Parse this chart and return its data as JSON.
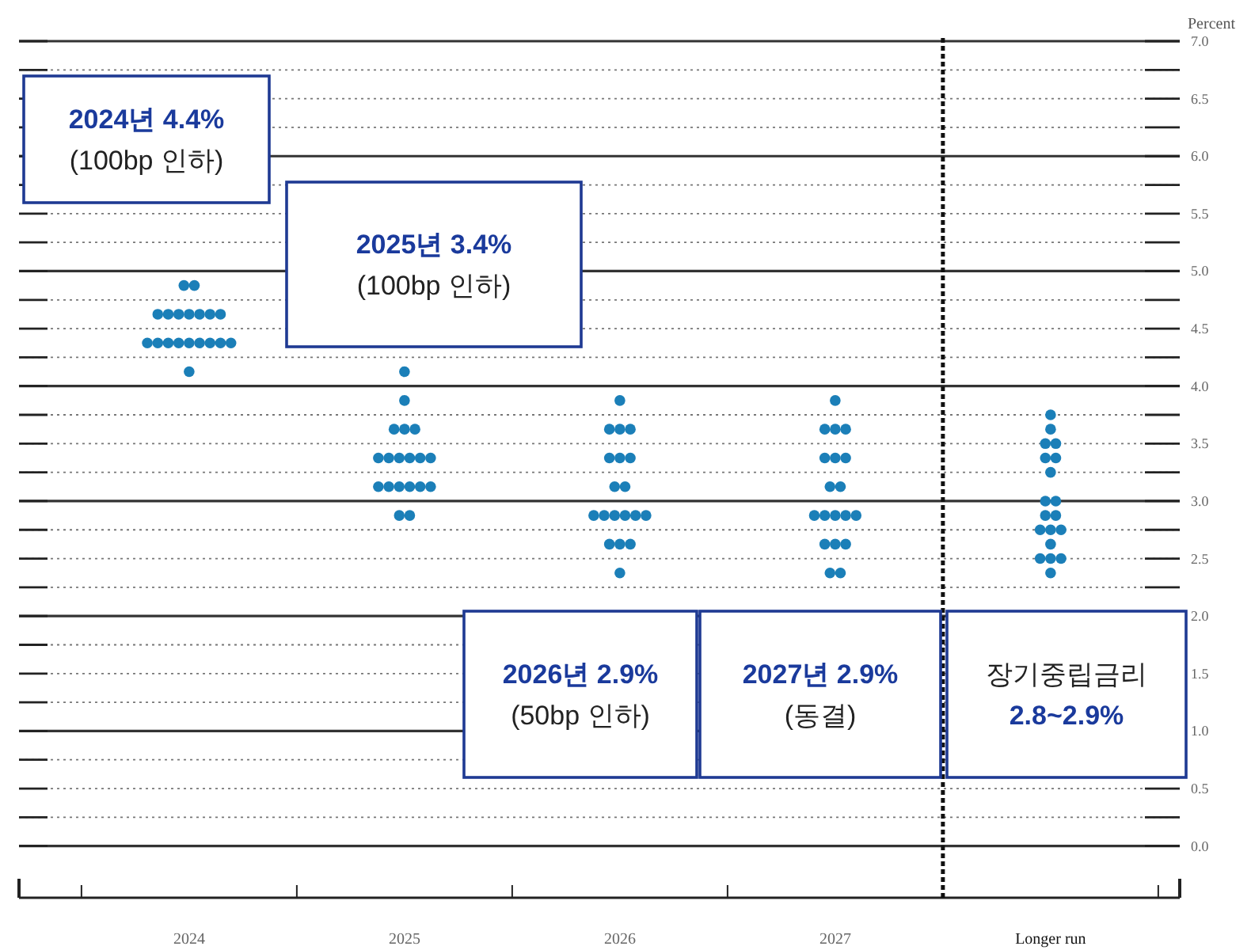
{
  "chart_data": {
    "type": "scatter",
    "ylabel": "Percent",
    "categories": [
      "2024",
      "2025",
      "2026",
      "2027",
      "Longer run"
    ],
    "ylim": [
      -0.45,
      7.0
    ],
    "yticks": [
      {
        "value": 0,
        "label": "0.0"
      },
      {
        "value": 0.25,
        "label": null
      },
      {
        "value": 0.5,
        "label": "0.5"
      },
      {
        "value": 0.75,
        "label": null
      },
      {
        "value": 1,
        "label": "1.0"
      },
      {
        "value": 1.25,
        "label": null
      },
      {
        "value": 1.5,
        "label": "1.5"
      },
      {
        "value": 1.75,
        "label": null
      },
      {
        "value": 2,
        "label": "2.0"
      },
      {
        "value": 2.25,
        "label": null
      },
      {
        "value": 2.5,
        "label": "2.5"
      },
      {
        "value": 2.75,
        "label": null
      },
      {
        "value": 3,
        "label": "3.0"
      },
      {
        "value": 3.25,
        "label": null
      },
      {
        "value": 3.5,
        "label": "3.5"
      },
      {
        "value": 3.75,
        "label": null
      },
      {
        "value": 4,
        "label": "4.0"
      },
      {
        "value": 4.25,
        "label": null
      },
      {
        "value": 4.5,
        "label": "4.5"
      },
      {
        "value": 4.75,
        "label": null
      },
      {
        "value": 5,
        "label": "5.0"
      },
      {
        "value": 5.25,
        "label": null
      },
      {
        "value": 5.5,
        "label": "5.5"
      },
      {
        "value": 5.75,
        "label": null
      },
      {
        "value": 6,
        "label": "6.0"
      },
      {
        "value": 6.25,
        "label": null
      },
      {
        "value": 6.5,
        "label": "6.5"
      },
      {
        "value": 6.75,
        "label": null
      },
      {
        "value": 7,
        "label": "7.0"
      }
    ],
    "grid": "y",
    "marker": "circle",
    "ref_lines": [
      {
        "axis": "x",
        "value": "Longer run",
        "line_style": "dashed",
        "color": "#111111"
      }
    ],
    "series": [
      {
        "color": "#1b7fb8",
        "values": [
          4.875,
          4.125,
          3.875,
          3.875,
          3.75
        ]
      },
      {
        "color": "#1b7fb8",
        "values": [
          4.875,
          3.875,
          3.625,
          3.625,
          3.625
        ]
      },
      {
        "color": "#1b7fb8",
        "values": [
          4.625,
          3.625,
          3.625,
          3.625,
          3.5
        ]
      },
      {
        "color": "#1b7fb8",
        "values": [
          4.625,
          3.625,
          3.625,
          3.625,
          3.5
        ]
      },
      {
        "color": "#1b7fb8",
        "values": [
          4.625,
          3.625,
          3.375,
          3.375,
          3.375
        ]
      },
      {
        "color": "#1b7fb8",
        "values": [
          4.625,
          3.375,
          3.375,
          3.375,
          3.375
        ]
      },
      {
        "color": "#1b7fb8",
        "values": [
          4.625,
          3.375,
          3.375,
          3.375,
          3.25
        ]
      },
      {
        "color": "#1b7fb8",
        "values": [
          4.625,
          3.375,
          3.125,
          3.125,
          3.0
        ]
      },
      {
        "color": "#1b7fb8",
        "values": [
          4.625,
          3.375,
          3.125,
          3.125,
          3.0
        ]
      },
      {
        "color": "#1b7fb8",
        "values": [
          4.375,
          3.375,
          2.875,
          2.875,
          2.875
        ]
      },
      {
        "color": "#1b7fb8",
        "values": [
          4.375,
          3.375,
          2.875,
          2.875,
          2.875
        ]
      },
      {
        "color": "#1b7fb8",
        "values": [
          4.375,
          3.125,
          2.875,
          2.875,
          2.75
        ]
      },
      {
        "color": "#1b7fb8",
        "values": [
          4.375,
          3.125,
          2.875,
          2.875,
          2.75
        ]
      },
      {
        "color": "#1b7fb8",
        "values": [
          4.375,
          3.125,
          2.875,
          2.875,
          2.75
        ]
      },
      {
        "color": "#1b7fb8",
        "values": [
          4.375,
          3.125,
          2.875,
          2.625,
          2.625
        ]
      },
      {
        "color": "#1b7fb8",
        "values": [
          4.375,
          3.125,
          2.625,
          2.625,
          2.5
        ]
      },
      {
        "color": "#1b7fb8",
        "values": [
          4.375,
          3.125,
          2.625,
          2.625,
          2.5
        ]
      },
      {
        "color": "#1b7fb8",
        "values": [
          4.375,
          2.875,
          2.625,
          2.375,
          2.5
        ]
      },
      {
        "color": "#1b7fb8",
        "values": [
          4.125,
          2.875,
          2.375,
          2.375,
          2.375
        ]
      }
    ],
    "annotations": [
      "2024년 4.4%\n(100bp 인하)",
      "2025년 3.4%\n(100bp 인하)",
      "2026년 2.9%\n(50bp 인하)",
      "2027년 2.9%\n(동결)",
      "장기중립금리\n2.8~2.9%"
    ]
  }
}
